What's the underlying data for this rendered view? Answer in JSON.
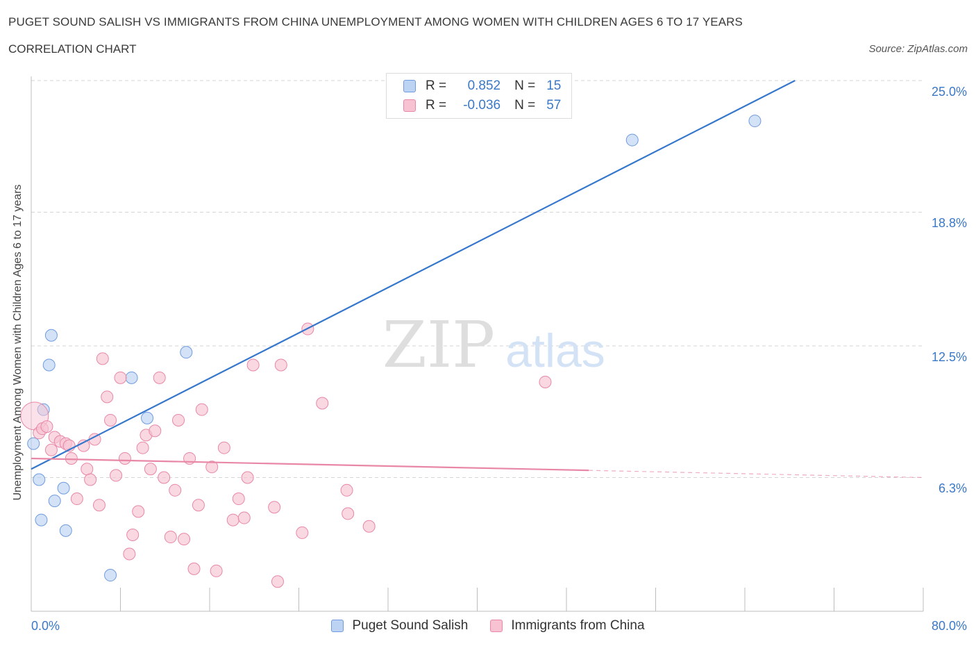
{
  "header": {
    "title": "PUGET SOUND SALISH VS IMMIGRANTS FROM CHINA UNEMPLOYMENT AMONG WOMEN WITH CHILDREN AGES 6 TO 17 YEARS",
    "subtitle": "CORRELATION CHART",
    "source": "Source: ZipAtlas.com"
  },
  "watermark": {
    "zip": "ZIP",
    "atlas": "atlas"
  },
  "chart_data": {
    "type": "scatter",
    "title": "PUGET SOUND SALISH VS IMMIGRANTS FROM CHINA UNEMPLOYMENT AMONG WOMEN WITH CHILDREN AGES 6 TO 17 YEARS",
    "xlabel": "",
    "ylabel": "Unemployment Among Women with Children Ages 6 to 17 years",
    "xlim": [
      0,
      80
    ],
    "ylim": [
      0,
      25
    ],
    "x_tick_labels": {
      "min": "0.0%",
      "max": "80.0%"
    },
    "y_ticks": [
      {
        "value": 6.3,
        "label": "6.3%"
      },
      {
        "value": 12.5,
        "label": "12.5%"
      },
      {
        "value": 18.8,
        "label": "18.8%"
      },
      {
        "value": 25.0,
        "label": "25.0%"
      }
    ],
    "grid": "horizontal dashed",
    "legend_position": "top-center",
    "series": [
      {
        "name": "Puget Sound Salish",
        "color": "#6f9be0",
        "fill": "#bcd3f3",
        "R": "0.852",
        "N": "15",
        "trend": {
          "x": [
            0,
            68.5
          ],
          "y": [
            6.7,
            25.0
          ],
          "dashed_from": null
        },
        "points": [
          {
            "x": 0.2,
            "y": 7.9
          },
          {
            "x": 0.7,
            "y": 6.2
          },
          {
            "x": 0.9,
            "y": 4.3
          },
          {
            "x": 1.1,
            "y": 9.5
          },
          {
            "x": 1.6,
            "y": 11.6
          },
          {
            "x": 1.8,
            "y": 13.0
          },
          {
            "x": 2.1,
            "y": 5.2
          },
          {
            "x": 2.9,
            "y": 5.8
          },
          {
            "x": 3.1,
            "y": 3.8
          },
          {
            "x": 7.1,
            "y": 1.7
          },
          {
            "x": 9.0,
            "y": 11.0
          },
          {
            "x": 10.4,
            "y": 9.1
          },
          {
            "x": 13.9,
            "y": 12.2
          },
          {
            "x": 53.9,
            "y": 22.2
          },
          {
            "x": 64.9,
            "y": 23.1
          }
        ]
      },
      {
        "name": "Immigrants from China",
        "color": "#e887a6",
        "fill": "#f7c3d3",
        "R": "-0.036",
        "N": "57",
        "trend": {
          "x": [
            0,
            80
          ],
          "y": [
            7.2,
            6.3
          ],
          "dashed_from": 50
        },
        "points": [
          {
            "x": 0.3,
            "y": 9.2
          },
          {
            "x": 0.7,
            "y": 8.4
          },
          {
            "x": 1.0,
            "y": 8.6
          },
          {
            "x": 1.4,
            "y": 8.7
          },
          {
            "x": 1.8,
            "y": 7.6
          },
          {
            "x": 2.1,
            "y": 8.2
          },
          {
            "x": 2.6,
            "y": 8.0
          },
          {
            "x": 3.1,
            "y": 7.9
          },
          {
            "x": 3.4,
            "y": 7.8
          },
          {
            "x": 3.6,
            "y": 7.2
          },
          {
            "x": 4.1,
            "y": 5.3
          },
          {
            "x": 4.7,
            "y": 7.8
          },
          {
            "x": 5.0,
            "y": 6.7
          },
          {
            "x": 5.3,
            "y": 6.2
          },
          {
            "x": 5.7,
            "y": 8.1
          },
          {
            "x": 6.1,
            "y": 5.0
          },
          {
            "x": 6.4,
            "y": 11.9
          },
          {
            "x": 6.8,
            "y": 10.1
          },
          {
            "x": 7.1,
            "y": 9.0
          },
          {
            "x": 7.6,
            "y": 6.4
          },
          {
            "x": 8.0,
            "y": 11.0
          },
          {
            "x": 8.4,
            "y": 7.2
          },
          {
            "x": 8.8,
            "y": 2.7
          },
          {
            "x": 9.1,
            "y": 3.6
          },
          {
            "x": 9.6,
            "y": 4.7
          },
          {
            "x": 10.0,
            "y": 7.7
          },
          {
            "x": 10.3,
            "y": 8.3
          },
          {
            "x": 10.7,
            "y": 6.7
          },
          {
            "x": 11.1,
            "y": 8.5
          },
          {
            "x": 11.5,
            "y": 11.0
          },
          {
            "x": 11.9,
            "y": 6.3
          },
          {
            "x": 12.5,
            "y": 3.5
          },
          {
            "x": 12.9,
            "y": 5.7
          },
          {
            "x": 13.2,
            "y": 9.0
          },
          {
            "x": 13.7,
            "y": 3.4
          },
          {
            "x": 14.2,
            "y": 7.2
          },
          {
            "x": 14.6,
            "y": 2.0
          },
          {
            "x": 15.0,
            "y": 5.0
          },
          {
            "x": 15.3,
            "y": 9.5
          },
          {
            "x": 16.2,
            "y": 6.8
          },
          {
            "x": 16.6,
            "y": 1.9
          },
          {
            "x": 17.3,
            "y": 7.7
          },
          {
            "x": 18.1,
            "y": 4.3
          },
          {
            "x": 18.6,
            "y": 5.3
          },
          {
            "x": 19.1,
            "y": 4.4
          },
          {
            "x": 19.4,
            "y": 6.3
          },
          {
            "x": 19.9,
            "y": 11.6
          },
          {
            "x": 21.8,
            "y": 4.9
          },
          {
            "x": 22.1,
            "y": 1.4
          },
          {
            "x": 22.4,
            "y": 11.6
          },
          {
            "x": 24.3,
            "y": 3.7
          },
          {
            "x": 24.8,
            "y": 13.3
          },
          {
            "x": 26.1,
            "y": 9.8
          },
          {
            "x": 28.3,
            "y": 5.7
          },
          {
            "x": 28.4,
            "y": 4.6
          },
          {
            "x": 30.3,
            "y": 4.0
          },
          {
            "x": 46.1,
            "y": 10.8
          }
        ]
      }
    ]
  }
}
